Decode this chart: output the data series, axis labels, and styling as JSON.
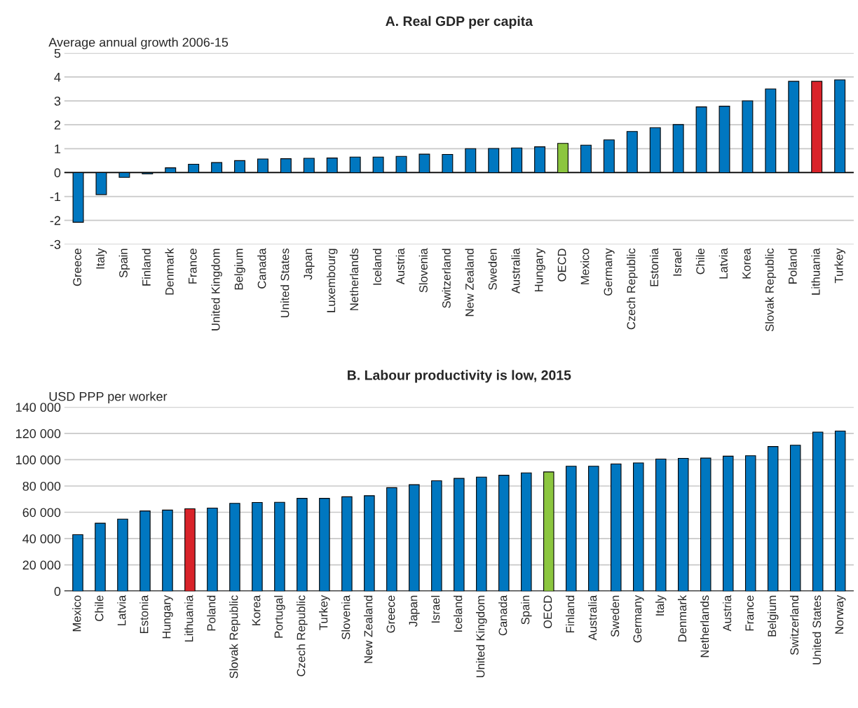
{
  "chart_data": [
    {
      "type": "bar",
      "title": "A. Real GDP per capita",
      "ylabel": "Average annual growth 2006-15",
      "categories": [
        "Greece",
        "Italy",
        "Spain",
        "Finland",
        "Denmark",
        "France",
        "United Kingdom",
        "Belgium",
        "Canada",
        "United States",
        "Japan",
        "Luxembourg",
        "Netherlands",
        "Iceland",
        "Austria",
        "Slovenia",
        "Switzerland",
        "New Zealand",
        "Sweden",
        "Australia",
        "Hungary",
        "OECD",
        "Mexico",
        "Germany",
        "Czech Republic",
        "Estonia",
        "Israel",
        "Chile",
        "Latvia",
        "Korea",
        "Slovak Republic",
        "Poland",
        "Lithuania",
        "Turkey"
      ],
      "values": [
        -2.08,
        -0.92,
        -0.2,
        -0.05,
        0.2,
        0.35,
        0.42,
        0.5,
        0.57,
        0.58,
        0.6,
        0.61,
        0.65,
        0.65,
        0.68,
        0.77,
        0.76,
        1.0,
        1.01,
        1.03,
        1.08,
        1.22,
        1.15,
        1.37,
        1.72,
        1.88,
        2.01,
        2.75,
        2.78,
        3.0,
        3.5,
        3.82,
        3.82,
        3.88
      ],
      "colors": [
        "#0077c0",
        "#0077c0",
        "#0077c0",
        "#0077c0",
        "#0077c0",
        "#0077c0",
        "#0077c0",
        "#0077c0",
        "#0077c0",
        "#0077c0",
        "#0077c0",
        "#0077c0",
        "#0077c0",
        "#0077c0",
        "#0077c0",
        "#0077c0",
        "#0077c0",
        "#0077c0",
        "#0077c0",
        "#0077c0",
        "#0077c0",
        "#8cc63f",
        "#0077c0",
        "#0077c0",
        "#0077c0",
        "#0077c0",
        "#0077c0",
        "#0077c0",
        "#0077c0",
        "#0077c0",
        "#0077c0",
        "#0077c0",
        "#d9232a",
        "#0077c0"
      ],
      "ylim": [
        -3,
        5
      ],
      "yticks": [
        {
          "value": -3,
          "label": "-3"
        },
        {
          "value": -2,
          "label": "-2"
        },
        {
          "value": -1,
          "label": "-1"
        },
        0,
        1,
        2,
        3,
        4,
        5
      ],
      "grid": "y"
    },
    {
      "type": "bar",
      "title": "B. Labour productivity is low, 2015",
      "ylabel": "USD PPP per worker",
      "categories": [
        "Mexico",
        "Chile",
        "Latvia",
        "Estonia",
        "Hungary",
        "Lithuania",
        "Poland",
        "Slovak Republic",
        "Korea",
        "Portugal",
        "Czech Republic",
        "Turkey",
        "Slovenia",
        "New Zealand",
        "Greece",
        "Japan",
        "Israel",
        "Iceland",
        "United Kingdom",
        "Canada",
        "Spain",
        "OECD",
        "Finland",
        "Australia",
        "Sweden",
        "Germany",
        "Italy",
        "Denmark",
        "Netherlands",
        "Austria",
        "France",
        "Belgium",
        "Switzerland",
        "United States",
        "Norway"
      ],
      "values": [
        43000,
        51700,
        54800,
        61000,
        61700,
        62700,
        63200,
        66800,
        67500,
        67600,
        70600,
        70600,
        71800,
        72600,
        78700,
        81000,
        84000,
        85800,
        86800,
        88200,
        90000,
        90700,
        95000,
        95000,
        96800,
        97600,
        100500,
        101000,
        101200,
        102700,
        103000,
        110000,
        111000,
        121000,
        121800
      ],
      "colors": [
        "#0077c0",
        "#0077c0",
        "#0077c0",
        "#0077c0",
        "#0077c0",
        "#d9232a",
        "#0077c0",
        "#0077c0",
        "#0077c0",
        "#0077c0",
        "#0077c0",
        "#0077c0",
        "#0077c0",
        "#0077c0",
        "#0077c0",
        "#0077c0",
        "#0077c0",
        "#0077c0",
        "#0077c0",
        "#0077c0",
        "#0077c0",
        "#8cc63f",
        "#0077c0",
        "#0077c0",
        "#0077c0",
        "#0077c0",
        "#0077c0",
        "#0077c0",
        "#0077c0",
        "#0077c0",
        "#0077c0",
        "#0077c0",
        "#0077c0",
        "#0077c0",
        "#0077c0"
      ],
      "ylim": [
        0,
        140000
      ],
      "yticks": [
        0,
        {
          "value": 20000,
          "label": "20 000"
        },
        {
          "value": 40000,
          "label": "40 000"
        },
        {
          "value": 60000,
          "label": "60 000"
        },
        {
          "value": 80000,
          "label": "80 000"
        },
        {
          "value": 100000,
          "label": "100 000"
        },
        {
          "value": 120000,
          "label": "120 000"
        },
        {
          "value": 140000,
          "label": "140 000"
        }
      ],
      "grid": "y"
    }
  ]
}
